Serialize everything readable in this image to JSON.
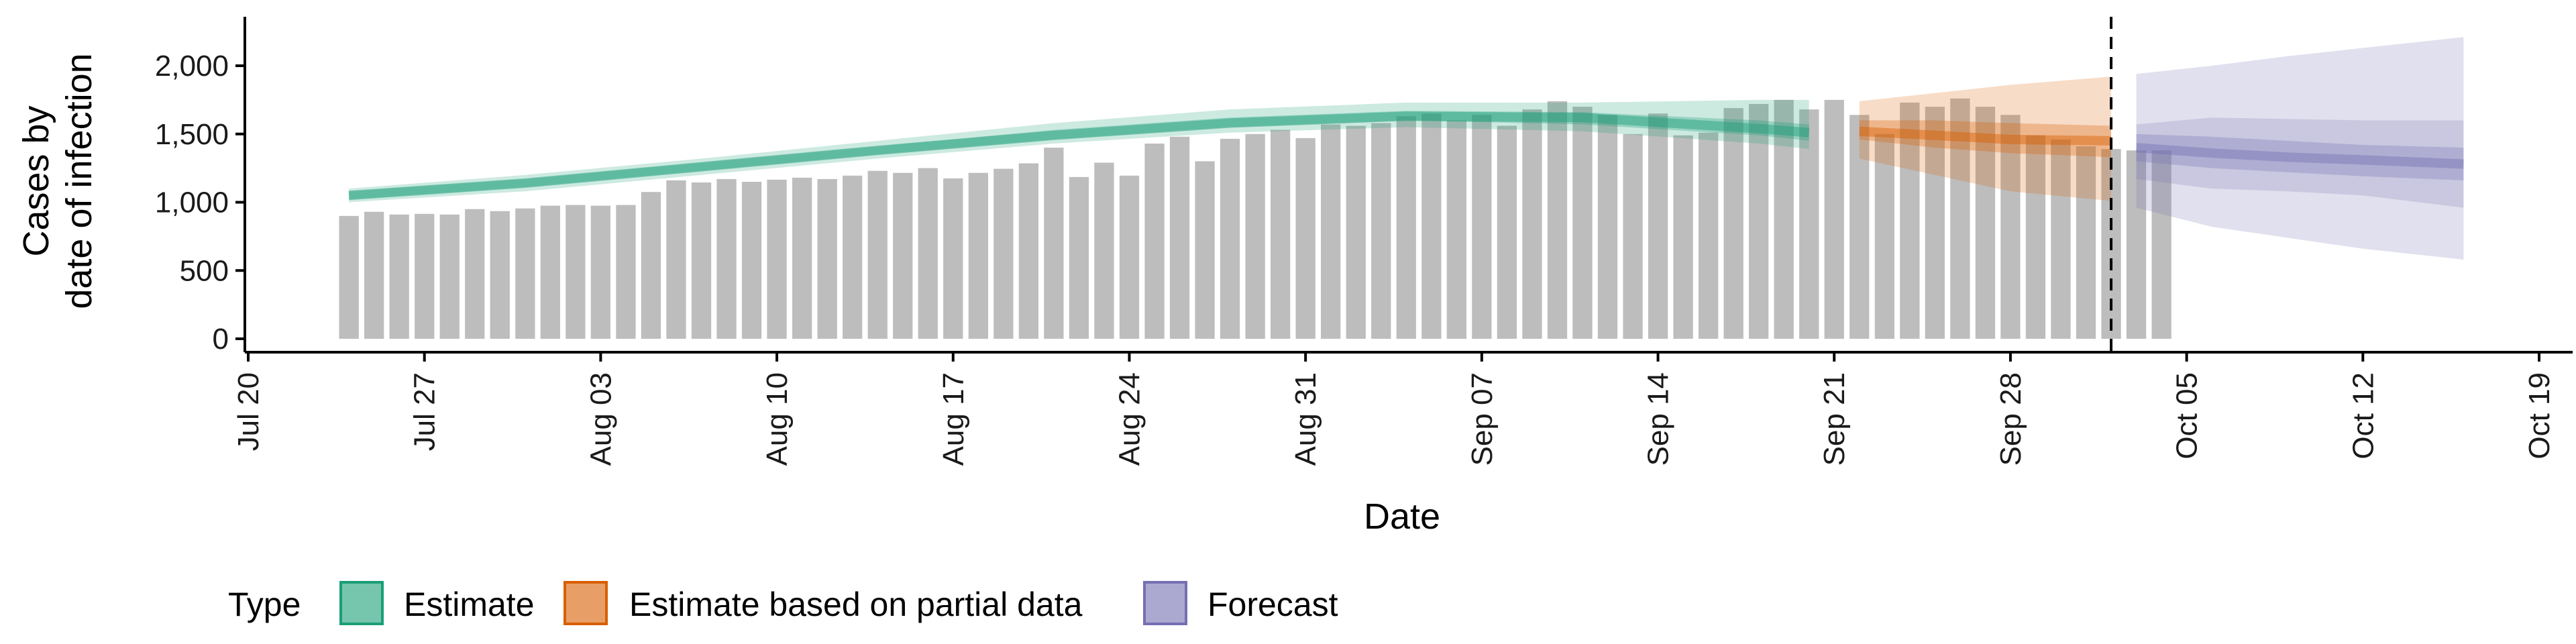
{
  "chart_data": {
    "type": "bar",
    "xlabel": "Date",
    "ylabel_lines": [
      "Cases by",
      "date of infection"
    ],
    "xlim": [
      "2020-07-20",
      "2020-10-19"
    ],
    "ylim": [
      0,
      2300
    ],
    "x_ticks": [
      {
        "date": "2020-07-20",
        "label": "Jul 20"
      },
      {
        "date": "2020-07-27",
        "label": "Jul 27"
      },
      {
        "date": "2020-08-03",
        "label": "Aug 03"
      },
      {
        "date": "2020-08-10",
        "label": "Aug 10"
      },
      {
        "date": "2020-08-17",
        "label": "Aug 17"
      },
      {
        "date": "2020-08-24",
        "label": "Aug 24"
      },
      {
        "date": "2020-08-31",
        "label": "Aug 31"
      },
      {
        "date": "2020-09-07",
        "label": "Sep 07"
      },
      {
        "date": "2020-09-14",
        "label": "Sep 14"
      },
      {
        "date": "2020-09-21",
        "label": "Sep 21"
      },
      {
        "date": "2020-09-28",
        "label": "Sep 28"
      },
      {
        "date": "2020-10-05",
        "label": "Oct 05"
      },
      {
        "date": "2020-10-12",
        "label": "Oct 12"
      },
      {
        "date": "2020-10-19",
        "label": "Oct 19"
      }
    ],
    "y_ticks": [
      {
        "value": 0,
        "label": "0"
      },
      {
        "value": 500,
        "label": "500"
      },
      {
        "value": 1000,
        "label": "1,000"
      },
      {
        "value": 1500,
        "label": "1,500"
      },
      {
        "value": 2000,
        "label": "2,000"
      }
    ],
    "reported_cases": {
      "start_date": "2020-07-24",
      "values": [
        900,
        930,
        910,
        915,
        910,
        950,
        935,
        955,
        975,
        980,
        975,
        980,
        1075,
        1160,
        1145,
        1170,
        1150,
        1165,
        1180,
        1170,
        1195,
        1230,
        1215,
        1250,
        1175,
        1215,
        1245,
        1285,
        1400,
        1185,
        1290,
        1195,
        1430,
        1480,
        1300,
        1465,
        1500,
        1530,
        1470,
        1570,
        1560,
        1580,
        1630,
        1650,
        1600,
        1640,
        1560,
        1680,
        1740,
        1700,
        1640,
        1500,
        1650,
        1490,
        1510,
        1690,
        1720,
        1750,
        1680,
        1750,
        1640,
        1500,
        1730,
        1700,
        1760,
        1700,
        1640,
        1490,
        1460,
        1410,
        1390,
        1380,
        1380
      ]
    },
    "forecast_line_date": "2020-10-02",
    "series": [
      {
        "name": "Estimate",
        "color": "#1b9e77",
        "dates": [
          "2020-07-24",
          "2020-07-31",
          "2020-08-07",
          "2020-08-14",
          "2020-08-21",
          "2020-08-28",
          "2020-09-04",
          "2020-09-11",
          "2020-09-18",
          "2020-09-20"
        ],
        "median": [
          1050,
          1140,
          1260,
          1380,
          1490,
          1580,
          1630,
          1620,
          1540,
          1510
        ],
        "ci50_low": [
          1020,
          1110,
          1230,
          1350,
          1460,
          1550,
          1600,
          1570,
          1490,
          1450
        ],
        "ci50_high": [
          1080,
          1170,
          1290,
          1410,
          1530,
          1620,
          1670,
          1660,
          1600,
          1570
        ],
        "ci90_low": [
          1000,
          1080,
          1200,
          1320,
          1430,
          1510,
          1550,
          1520,
          1430,
          1390
        ],
        "ci90_high": [
          1100,
          1200,
          1320,
          1450,
          1580,
          1680,
          1730,
          1730,
          1750,
          1750
        ]
      },
      {
        "name": "Estimate based on partial data",
        "color": "#d95f02",
        "dates": [
          "2020-09-22",
          "2020-09-25",
          "2020-09-28",
          "2020-10-02"
        ],
        "median": [
          1520,
          1490,
          1460,
          1450
        ],
        "ci50_low": [
          1460,
          1400,
          1360,
          1330
        ],
        "ci50_high": [
          1600,
          1600,
          1580,
          1560
        ],
        "ci90_low": [
          1320,
          1200,
          1080,
          1010
        ],
        "ci90_high": [
          1740,
          1800,
          1860,
          1920
        ]
      },
      {
        "name": "Forecast",
        "color": "#7570b3",
        "dates": [
          "2020-10-03",
          "2020-10-06",
          "2020-10-09",
          "2020-10-12",
          "2020-10-16"
        ],
        "median": [
          1400,
          1360,
          1330,
          1310,
          1280
        ],
        "ci50_low": [
          1300,
          1250,
          1220,
          1190,
          1160
        ],
        "ci50_high": [
          1500,
          1480,
          1450,
          1420,
          1400
        ],
        "ci80_low": [
          1170,
          1100,
          1080,
          1050,
          960
        ],
        "ci80_high": [
          1570,
          1620,
          1610,
          1600,
          1600
        ],
        "ci90_low": [
          960,
          820,
          740,
          660,
          580
        ],
        "ci90_high": [
          1940,
          2000,
          2070,
          2130,
          2210
        ]
      }
    ],
    "legend": {
      "title": "Type",
      "position": "bottom",
      "entries": [
        "Estimate",
        "Estimate based on partial data",
        "Forecast"
      ]
    },
    "grid": false,
    "colors": {
      "bar": "#bdbdbd",
      "estimate_fill": "#1b9e77",
      "partial_fill": "#d95f02",
      "forecast_fill": "#7570b3",
      "axis": "#000000"
    }
  }
}
